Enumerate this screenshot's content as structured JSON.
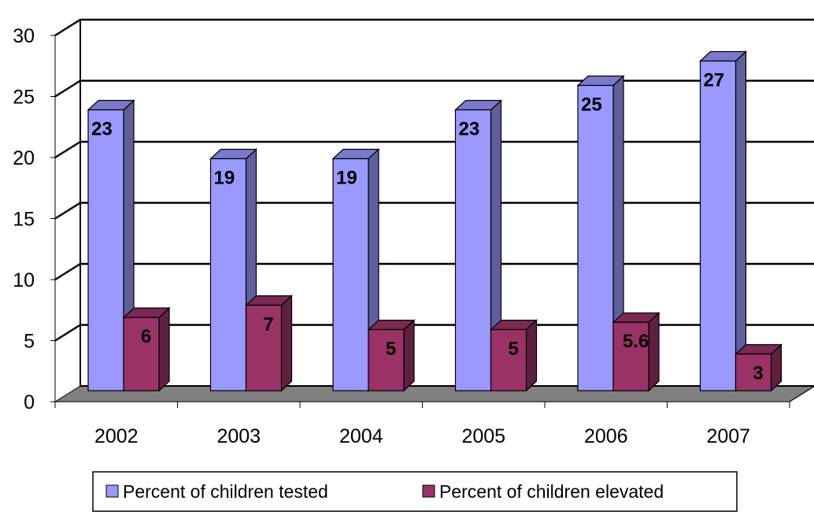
{
  "chart_data": {
    "type": "bar",
    "categories": [
      "2002",
      "2003",
      "2004",
      "2005",
      "2006",
      "2007"
    ],
    "series": [
      {
        "name": "Percent of children tested",
        "values": [
          23,
          19,
          19,
          23,
          25,
          27
        ],
        "labels": [
          "23",
          "19",
          "19",
          "23",
          "25",
          "27"
        ],
        "color": "#9999ff"
      },
      {
        "name": "Percent of children elevated",
        "values": [
          6,
          7,
          5,
          5,
          5.6,
          3
        ],
        "labels": [
          "6",
          "7",
          "5",
          "5",
          "5.6",
          "3"
        ],
        "color": "#993366"
      }
    ],
    "y_ticks": [
      "0",
      "5",
      "10",
      "15",
      "20",
      "25",
      "30"
    ],
    "ylim": [
      0,
      30
    ],
    "grid": true,
    "legend_position": "bottom",
    "three_d": true
  }
}
